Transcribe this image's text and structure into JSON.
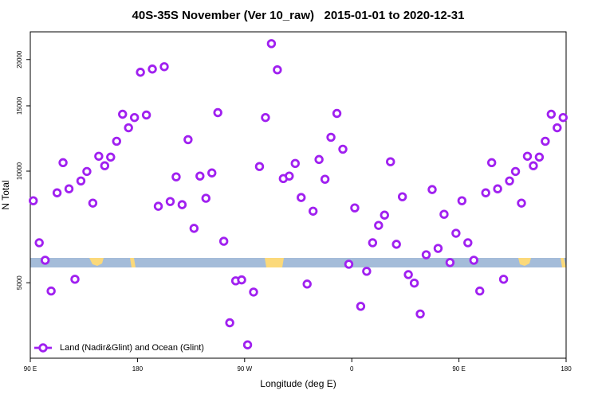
{
  "chart_data": {
    "type": "scatter",
    "title": "40S-35S November (Ver 10_raw)   2015-01-01 to 2020-12-31",
    "xlabel": "Longitude (deg E)",
    "ylabel": "N Total",
    "log_y": true,
    "legend": "bottomleft",
    "color": "#a020f0",
    "series": [
      {
        "name": "Land (Nadir&Glint) and Ocean (Glint)",
        "color": "#a020f0",
        "x": [
          92.5,
          97.5,
          102.5,
          107.5,
          112.5,
          117.5,
          122.5,
          127.5,
          132.5,
          137.5,
          142.5,
          147.5,
          152.5,
          157.5,
          162.5,
          167.5,
          172.5,
          177.5,
          182.5,
          187.5,
          192.5,
          197.5,
          202.5,
          207.5,
          212.5,
          217.5,
          222.5,
          227.5,
          232.5,
          237.5,
          242.5,
          247.5,
          252.5,
          257.5,
          262.5,
          267.5,
          272.5,
          277.5,
          282.5,
          287.5,
          292.5,
          297.5,
          302.5,
          307.5,
          312.5,
          317.5,
          322.5,
          327.5,
          332.5,
          337.5,
          342.5,
          347.5,
          352.5,
          357.5,
          362.5,
          367.5,
          372.5,
          377.5,
          382.5,
          387.5,
          392.5,
          397.5,
          402.5,
          407.5,
          412.5,
          417.5,
          422.5,
          427.5,
          432.5,
          437.5,
          442.5,
          447.5,
          452.5,
          457.5,
          462.5,
          467.5,
          472.5,
          477.5,
          482.5,
          487.5,
          492.5,
          497.5,
          502.5,
          507.5,
          512.5,
          517.5,
          522.5,
          527.5,
          532.5,
          537.5
        ],
        "values": [
          8320,
          6410,
          5750,
          4750,
          8740,
          10540,
          8960,
          5110,
          9410,
          9980,
          8200,
          10970,
          10340,
          10910,
          12040,
          14240,
          13090,
          13950,
          18480,
          14170,
          18850,
          8040,
          19130,
          8280,
          9650,
          8120,
          12160,
          7010,
          9700,
          8450,
          9890,
          14380,
          6470,
          3900,
          5060,
          5090,
          3400,
          4720,
          10290,
          13950,
          22070,
          18760,
          9550,
          9700,
          10490,
          8490,
          4960,
          7800,
          10750,
          9510,
          12340,
          14310,
          11460,
          5610,
          7960,
          4320,
          5370,
          6410,
          7140,
          7610,
          10600,
          6350,
          8530,
          5260,
          4990,
          4120,
          5950,
          8920,
          6190,
          7650,
          5670,
          6800,
          8320,
          6410,
          5750,
          4750,
          8740,
          10540,
          8960,
          5110,
          9410,
          9980,
          8200,
          10970,
          10340,
          10910,
          12040,
          14240,
          13090,
          13950
        ]
      }
    ],
    "xlim": [
      90,
      540
    ],
    "xticks": [
      {
        "value": 90,
        "label": "90 E"
      },
      180,
      {
        "value": 270,
        "label": "90 W"
      },
      {
        "value": 360,
        "label": "0"
      },
      {
        "value": 450,
        "label": "90 E"
      },
      {
        "value": 540,
        "label": "180"
      }
    ],
    "ylim": [
      3130,
      23750
    ],
    "yticks": [
      5000,
      10000,
      15000,
      20000
    ]
  }
}
